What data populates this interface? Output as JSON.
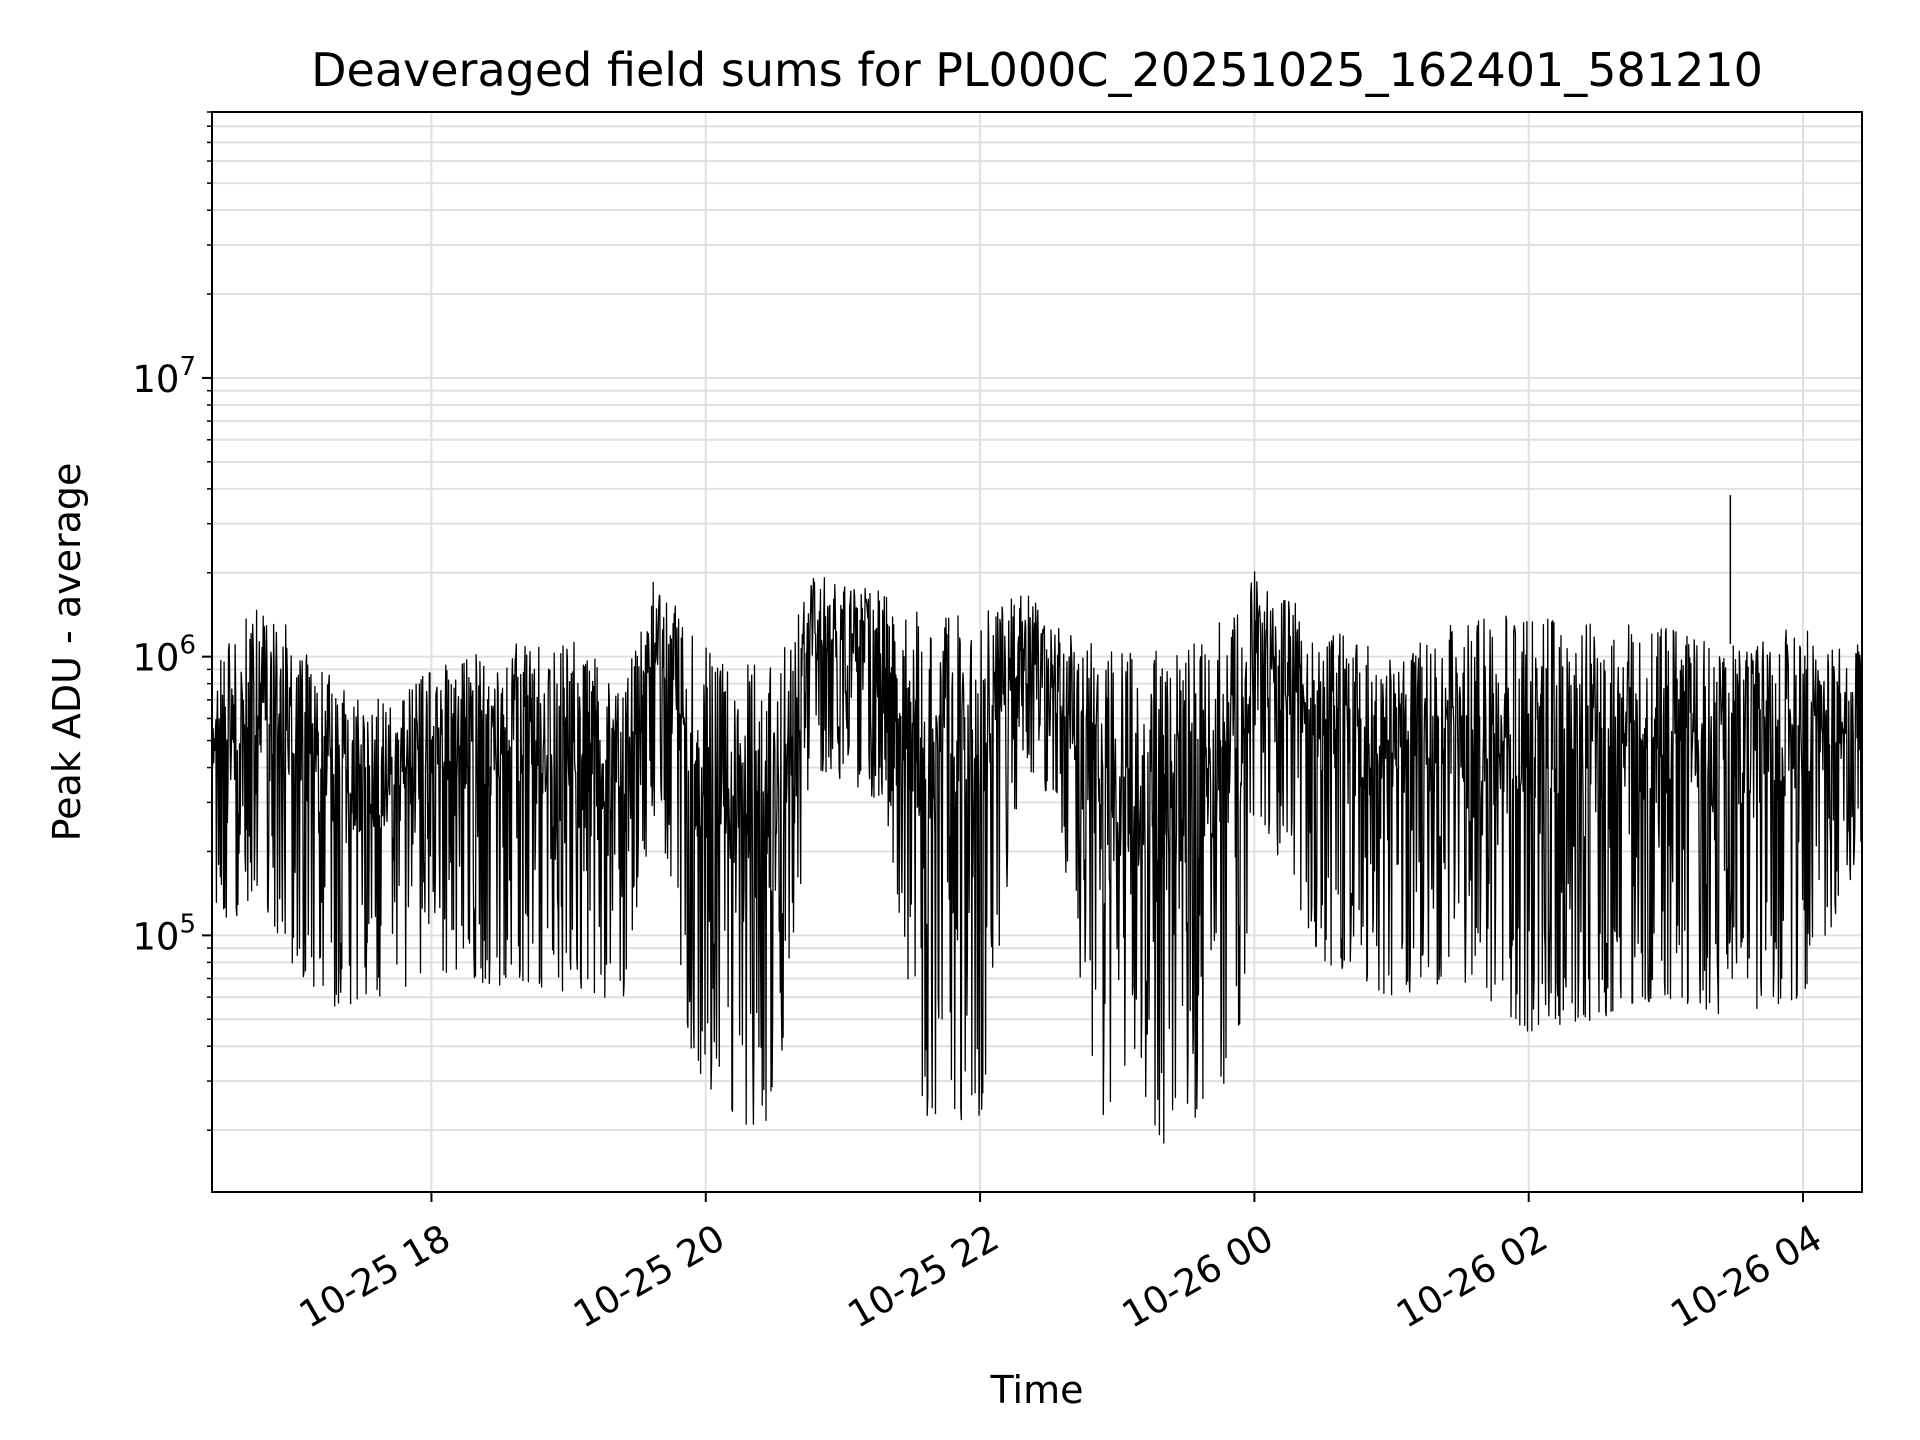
{
  "chart_data": {
    "type": "line",
    "title": "Deaveraged field sums for PL000C_20251025_162401_581210",
    "xlabel": "Time",
    "ylabel": "Peak ADU - average",
    "yscale": "log",
    "ylim": [
      12000,
      90000000
    ],
    "xlim_hours": [
      16.4,
      28.43
    ],
    "grid": true,
    "x_ticks": [
      {
        "hours": 18,
        "label": "10-25 18"
      },
      {
        "hours": 20,
        "label": "10-25 20"
      },
      {
        "hours": 22,
        "label": "10-25 22"
      },
      {
        "hours": 24,
        "label": "10-26 00"
      },
      {
        "hours": 26,
        "label": "10-26 02"
      },
      {
        "hours": 28,
        "label": "10-26 04"
      }
    ],
    "y_ticks": [
      {
        "value": 100000,
        "base": "10",
        "exp": "5"
      },
      {
        "value": 1000000,
        "base": "10",
        "exp": "6"
      },
      {
        "value": 10000000,
        "base": "10",
        "exp": "7"
      }
    ],
    "series_envelope": [
      {
        "t": 16.4,
        "hi": 1000000,
        "lo": 110000
      },
      {
        "t": 16.7,
        "hi": 1500000,
        "lo": 120000
      },
      {
        "t": 17.0,
        "hi": 1300000,
        "lo": 70000
      },
      {
        "t": 17.3,
        "hi": 800000,
        "lo": 55000
      },
      {
        "t": 17.7,
        "hi": 700000,
        "lo": 60000
      },
      {
        "t": 18.0,
        "hi": 900000,
        "lo": 75000
      },
      {
        "t": 18.5,
        "hi": 1100000,
        "lo": 65000
      },
      {
        "t": 19.0,
        "hi": 1200000,
        "lo": 60000
      },
      {
        "t": 19.4,
        "hi": 800000,
        "lo": 60000
      },
      {
        "t": 19.65,
        "hi": 2100000,
        "lo": 300000
      },
      {
        "t": 19.9,
        "hi": 1200000,
        "lo": 35000
      },
      {
        "t": 20.2,
        "hi": 900000,
        "lo": 20000
      },
      {
        "t": 20.5,
        "hi": 1000000,
        "lo": 22000
      },
      {
        "t": 20.8,
        "hi": 2000000,
        "lo": 400000
      },
      {
        "t": 21.3,
        "hi": 1700000,
        "lo": 300000
      },
      {
        "t": 21.6,
        "hi": 1400000,
        "lo": 22000
      },
      {
        "t": 22.0,
        "hi": 1500000,
        "lo": 21000
      },
      {
        "t": 22.3,
        "hi": 1800000,
        "lo": 400000
      },
      {
        "t": 22.55,
        "hi": 1300000,
        "lo": 300000
      },
      {
        "t": 22.9,
        "hi": 1100000,
        "lo": 18000
      },
      {
        "t": 23.25,
        "hi": 1100000,
        "lo": 16500
      },
      {
        "t": 23.5,
        "hi": 1100000,
        "lo": 20000
      },
      {
        "t": 23.9,
        "hi": 1500000,
        "lo": 35000
      },
      {
        "t": 24.0,
        "hi": 2100000,
        "lo": 300000
      },
      {
        "t": 24.5,
        "hi": 1300000,
        "lo": 80000
      },
      {
        "t": 25.0,
        "hi": 1000000,
        "lo": 60000
      },
      {
        "t": 25.5,
        "hi": 1400000,
        "lo": 70000
      },
      {
        "t": 26.0,
        "hi": 1400000,
        "lo": 45000
      },
      {
        "t": 26.5,
        "hi": 1300000,
        "lo": 50000
      },
      {
        "t": 27.0,
        "hi": 1300000,
        "lo": 60000
      },
      {
        "t": 27.5,
        "hi": 1100000,
        "lo": 50000
      },
      {
        "t": 28.0,
        "hi": 1300000,
        "lo": 60000
      },
      {
        "t": 28.43,
        "hi": 1100000,
        "lo": 200000
      }
    ],
    "spike": {
      "t": 27.47,
      "value": 3800000
    }
  },
  "colors": {
    "line": "#000000",
    "grid": "#e0e0e0",
    "axes": "#000000",
    "background": "#ffffff"
  }
}
